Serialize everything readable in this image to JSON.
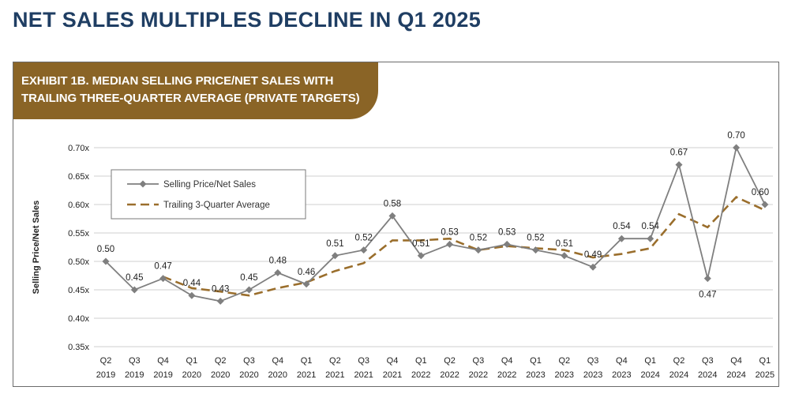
{
  "page_title": "NET SALES MULTIPLES DECLINE IN Q1 2025",
  "exhibit": {
    "line1": "EXHIBIT 1B. MEDIAN SELLING PRICE/NET SALES WITH",
    "line2": "TRAILING THREE-QUARTER AVERAGE (PRIVATE TARGETS)"
  },
  "colors": {
    "title": "#1f3e63",
    "banner": "#8a6426",
    "series_main": "#7f7f7f",
    "series_avg": "#9a6e2c",
    "grid": "#cfcfcf"
  },
  "chart_data": {
    "type": "line",
    "title": "EXHIBIT 1B. MEDIAN SELLING PRICE/NET SALES WITH TRAILING THREE-QUARTER AVERAGE (PRIVATE TARGETS)",
    "xlabel": "",
    "ylabel": "Selling Price/Net Sales",
    "ylim": [
      0.35,
      0.7
    ],
    "yticks": [
      0.35,
      0.4,
      0.45,
      0.5,
      0.55,
      0.6,
      0.65,
      0.7
    ],
    "ytick_labels": [
      "0.35x",
      "0.40x",
      "0.45x",
      "0.50x",
      "0.55x",
      "0.60x",
      "0.65x",
      "0.70x"
    ],
    "grid": true,
    "legend_position": "top-left",
    "categories": [
      [
        "Q2",
        "2019"
      ],
      [
        "Q3",
        "2019"
      ],
      [
        "Q4",
        "2019"
      ],
      [
        "Q1",
        "2020"
      ],
      [
        "Q2",
        "2020"
      ],
      [
        "Q3",
        "2020"
      ],
      [
        "Q4",
        "2020"
      ],
      [
        "Q1",
        "2021"
      ],
      [
        "Q2",
        "2021"
      ],
      [
        "Q3",
        "2021"
      ],
      [
        "Q4",
        "2021"
      ],
      [
        "Q1",
        "2022"
      ],
      [
        "Q2",
        "2022"
      ],
      [
        "Q3",
        "2022"
      ],
      [
        "Q4",
        "2022"
      ],
      [
        "Q1",
        "2023"
      ],
      [
        "Q2",
        "2023"
      ],
      [
        "Q3",
        "2023"
      ],
      [
        "Q4",
        "2023"
      ],
      [
        "Q1",
        "2024"
      ],
      [
        "Q2",
        "2024"
      ],
      [
        "Q3",
        "2024"
      ],
      [
        "Q4",
        "2024"
      ],
      [
        "Q1",
        "2025"
      ]
    ],
    "series": [
      {
        "name": "Selling Price/Net Sales",
        "style": "solid-diamond",
        "values": [
          0.5,
          0.45,
          0.47,
          0.44,
          0.43,
          0.45,
          0.48,
          0.46,
          0.51,
          0.52,
          0.58,
          0.51,
          0.53,
          0.52,
          0.53,
          0.52,
          0.51,
          0.49,
          0.54,
          0.54,
          0.67,
          0.47,
          0.7,
          0.6
        ],
        "labels": [
          "0.50",
          "0.45",
          "0.47",
          "0.44",
          "0.43",
          "0.45",
          "0.48",
          "0.46",
          "0.51",
          "0.52",
          "0.58",
          "0.51",
          "0.53",
          "0.52",
          "0.53",
          "0.52",
          "0.51",
          "0.49",
          "0.54",
          "0.54",
          "0.67",
          "0.47",
          "0.70",
          "0.60"
        ]
      },
      {
        "name": "Trailing 3-Quarter Average",
        "style": "dashed",
        "values": [
          null,
          null,
          0.473,
          0.453,
          0.447,
          0.44,
          0.453,
          0.463,
          0.483,
          0.497,
          0.537,
          0.537,
          0.54,
          0.52,
          0.527,
          0.523,
          0.52,
          0.507,
          0.513,
          0.523,
          0.583,
          0.56,
          0.613,
          0.59
        ]
      }
    ]
  }
}
